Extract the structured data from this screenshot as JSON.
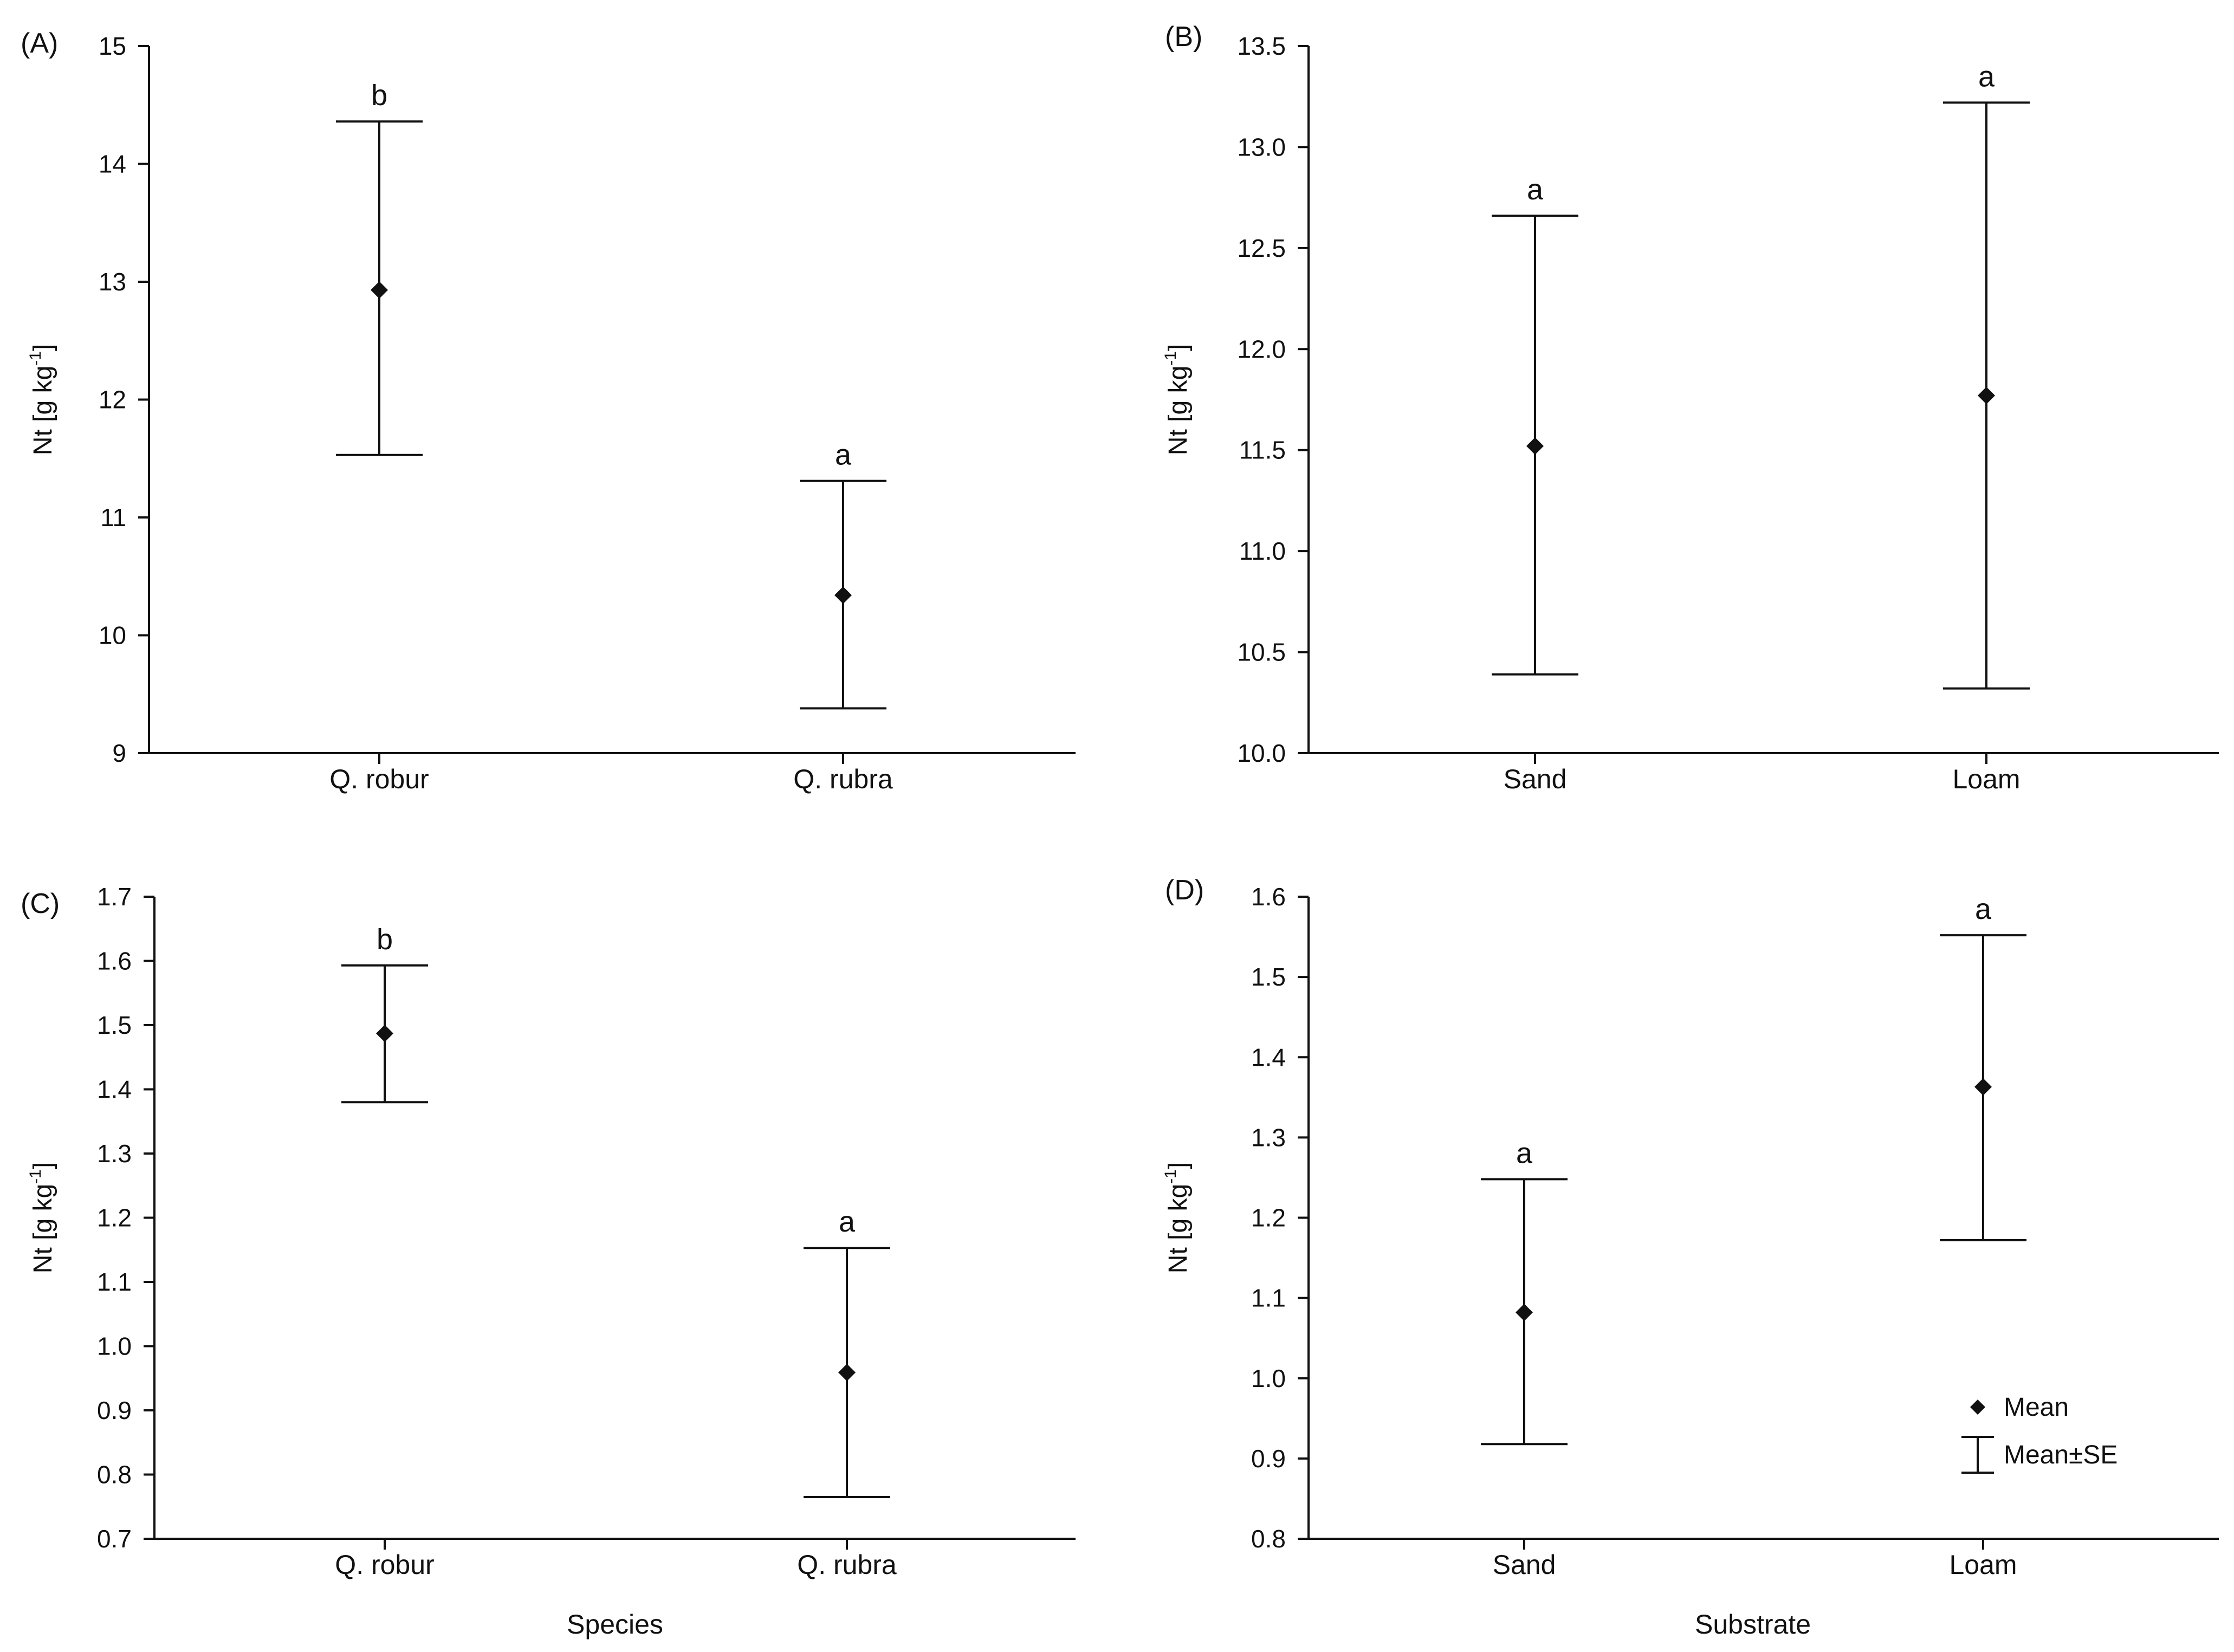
{
  "chart_data": [
    {
      "panel": "(A)",
      "type": "scatter",
      "subtype": "mean with error bars",
      "ylabel": {
        "main": "Nt [g kg",
        "sup": "-1",
        "close": "]"
      },
      "xlabel": "",
      "ylim": [
        9,
        15
      ],
      "yticks": [
        9,
        10,
        11,
        12,
        13,
        14,
        15
      ],
      "ytick_labels": [
        "9",
        "10",
        "11",
        "12",
        "13",
        "14",
        "15"
      ],
      "categories": [
        "Q. robur",
        "Q. rubra"
      ],
      "mean": [
        12.93,
        10.34
      ],
      "lower": [
        11.53,
        9.38
      ],
      "upper": [
        14.36,
        11.31
      ],
      "letters": [
        "b",
        "a"
      ]
    },
    {
      "panel": "(B)",
      "type": "scatter",
      "subtype": "mean with error bars",
      "ylabel": {
        "main": "Nt [g kg",
        "sup": "-1",
        "close": "]"
      },
      "xlabel": "",
      "ylim": [
        10.0,
        13.5
      ],
      "yticks": [
        10.0,
        10.5,
        11.0,
        11.5,
        12.0,
        12.5,
        13.0,
        13.5
      ],
      "ytick_labels": [
        "10.0",
        "10.5",
        "11.0",
        "11.5",
        "12.0",
        "12.5",
        "13.0",
        "13.5"
      ],
      "categories": [
        "Sand",
        "Loam"
      ],
      "mean": [
        11.52,
        11.77
      ],
      "lower": [
        10.39,
        10.32
      ],
      "upper": [
        12.66,
        13.22
      ],
      "letters": [
        "a",
        "a"
      ]
    },
    {
      "panel": "(C)",
      "type": "scatter",
      "subtype": "mean with error bars",
      "ylabel": {
        "main": "Nt [g kg",
        "sup": "-1",
        "close": "]"
      },
      "xlabel": "Species",
      "ylim": [
        0.7,
        1.7
      ],
      "yticks": [
        0.7,
        0.8,
        0.9,
        1.0,
        1.1,
        1.2,
        1.3,
        1.4,
        1.5,
        1.6,
        1.7
      ],
      "ytick_labels": [
        "0.7",
        "0.8",
        "0.9",
        "1.0",
        "1.1",
        "1.2",
        "1.3",
        "1.4",
        "1.5",
        "1.6",
        "1.7"
      ],
      "categories": [
        "Q. robur",
        "Q. rubra"
      ],
      "mean": [
        1.487,
        0.959
      ],
      "lower": [
        1.38,
        0.765
      ],
      "upper": [
        1.593,
        1.153
      ],
      "letters": [
        "b",
        "a"
      ]
    },
    {
      "panel": "(D)",
      "type": "scatter",
      "subtype": "mean with error bars",
      "ylabel": {
        "main": "Nt [g kg",
        "sup": "-1",
        "close": "]"
      },
      "xlabel": "Substrate",
      "ylim": [
        0.8,
        1.6
      ],
      "yticks": [
        0.8,
        0.9,
        1.0,
        1.1,
        1.2,
        1.3,
        1.4,
        1.5,
        1.6
      ],
      "ytick_labels": [
        "0.8",
        "0.9",
        "1.0",
        "1.1",
        "1.2",
        "1.3",
        "1.4",
        "1.5",
        "1.6"
      ],
      "categories": [
        "Sand",
        "Loam"
      ],
      "mean": [
        1.082,
        1.363
      ],
      "lower": [
        0.918,
        1.172
      ],
      "upper": [
        1.248,
        1.552
      ],
      "letters": [
        "a",
        "a"
      ],
      "legend": [
        "Mean",
        "Mean±SE"
      ],
      "legend_position": "bottom-right"
    }
  ],
  "colors": {
    "marker": "#111111",
    "axis": "#111111",
    "text": "#111111"
  }
}
